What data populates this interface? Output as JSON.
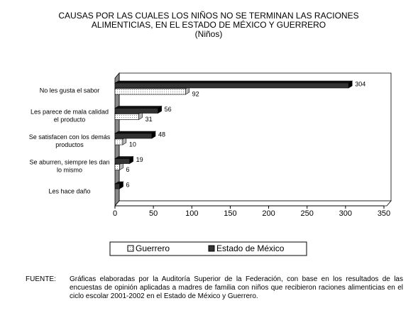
{
  "chart_data": {
    "type": "bar",
    "orientation": "horizontal",
    "title": [
      "CAUSAS POR LAS CUALES LOS NIÑOS NO SE TERMINAN LAS RACIONES",
      "ALIMENTICIAS, EN EL ESTADO DE MÉXICO Y GUERRERO"
    ],
    "subtitle": "(Niños)",
    "categories": [
      [
        "No les gusta el sabor"
      ],
      [
        "Les parece de mala calidad",
        "el producto"
      ],
      [
        "Se satisfacen con los demás",
        "productos"
      ],
      [
        "Se aburren, siempre les dan",
        "lo mismo"
      ],
      [
        "Les hace daño"
      ]
    ],
    "series": [
      {
        "name": "Guerrero",
        "color": "#ffffff",
        "values": [
          92,
          31,
          10,
          6,
          null
        ]
      },
      {
        "name": "Estado de México",
        "color": "#333333",
        "values": [
          304,
          56,
          48,
          19,
          6
        ]
      }
    ],
    "xlim": [
      0,
      350
    ],
    "xticks": [
      0,
      50,
      100,
      150,
      200,
      250,
      300,
      350
    ],
    "source_label": "FUENTE:",
    "source_text": "Gráficas elaboradas por la Auditoría Superior de la Federación, con base en los resultados de las encuestas de opinión aplicadas a madres de familia con niños que recibieron raciones alimenticias en el ciclo escolar 2001-2002 en el Estado de México y Guerrero."
  }
}
